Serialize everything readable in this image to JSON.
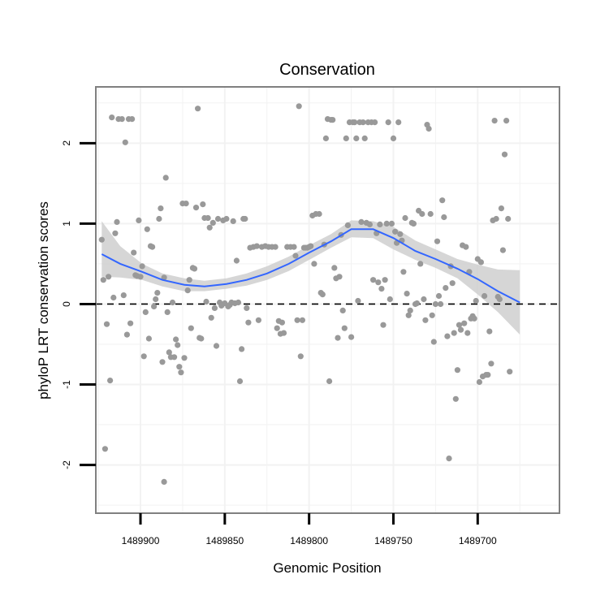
{
  "chart_data": {
    "type": "scatter",
    "title": "Conservation",
    "xlabel": "Genomic Position",
    "ylabel": "phyloP LRT conservation scores",
    "x_reversed": true,
    "xlim": [
      1489926.5,
      1489651.5
    ],
    "ylim": [
      -2.6,
      2.7
    ],
    "x_ticks": [
      1489900,
      1489850,
      1489800,
      1489750,
      1489700
    ],
    "x_tick_labels": [
      "1489900",
      "1489850",
      "1489800",
      "1489750",
      "1489700"
    ],
    "y_ticks": [
      -2,
      -1,
      0,
      1,
      2
    ],
    "y_tick_labels": [
      "-2",
      "-1",
      "0",
      "1",
      "2"
    ],
    "reference_line": {
      "y": 0,
      "style": "dashed"
    },
    "grid": true,
    "colors": {
      "points": "#999999",
      "smooth_line": "#3366ff",
      "ribbon": "#cccccc",
      "panel_border": "#808080",
      "grid": "#f2f2f2"
    },
    "smooth": {
      "x": [
        1489923,
        1489912,
        1489899,
        1489887,
        1489874,
        1489862,
        1489849,
        1489837,
        1489825,
        1489812,
        1489800,
        1489787,
        1489775,
        1489762,
        1489750,
        1489737,
        1489725,
        1489712,
        1489700,
        1489688,
        1489675
      ],
      "y": [
        0.62,
        0.5,
        0.4,
        0.3,
        0.24,
        0.22,
        0.25,
        0.3,
        0.38,
        0.5,
        0.64,
        0.78,
        0.93,
        0.93,
        0.82,
        0.66,
        0.56,
        0.44,
        0.31,
        0.16,
        0.02
      ],
      "lower": [
        0.34,
        0.33,
        0.3,
        0.22,
        0.16,
        0.16,
        0.19,
        0.23,
        0.3,
        0.41,
        0.55,
        0.7,
        0.83,
        0.82,
        0.68,
        0.55,
        0.45,
        0.32,
        0.12,
        -0.1,
        -0.38
      ],
      "upper": [
        1.03,
        0.72,
        0.5,
        0.38,
        0.32,
        0.29,
        0.32,
        0.38,
        0.47,
        0.59,
        0.73,
        0.87,
        1.04,
        1.03,
        0.96,
        0.79,
        0.68,
        0.56,
        0.49,
        0.43,
        0.42
      ]
    },
    "points": [
      [
        1489923,
        0.8
      ],
      [
        1489922,
        0.3
      ],
      [
        1489921,
        -1.8
      ],
      [
        1489920,
        -0.25
      ],
      [
        1489919,
        0.34
      ],
      [
        1489918,
        -0.95
      ],
      [
        1489917,
        2.32
      ],
      [
        1489916,
        0.08
      ],
      [
        1489915,
        0.88
      ],
      [
        1489914,
        1.02
      ],
      [
        1489913,
        2.3
      ],
      [
        1489911,
        2.3
      ],
      [
        1489910,
        0.11
      ],
      [
        1489909,
        2.01
      ],
      [
        1489908,
        -0.38
      ],
      [
        1489907,
        2.3
      ],
      [
        1489906,
        -0.24
      ],
      [
        1489905,
        2.3
      ],
      [
        1489904,
        0.64
      ],
      [
        1489903,
        0.36
      ],
      [
        1489902,
        0.35
      ],
      [
        1489901,
        1.04
      ],
      [
        1489900,
        0.34
      ],
      [
        1489899,
        0.47
      ],
      [
        1489898,
        -0.65
      ],
      [
        1489897,
        -0.1
      ],
      [
        1489896,
        0.93
      ],
      [
        1489895,
        -0.43
      ],
      [
        1489894,
        0.72
      ],
      [
        1489893,
        0.71
      ],
      [
        1489892,
        -0.03
      ],
      [
        1489891,
        0.06
      ],
      [
        1489890,
        0.14
      ],
      [
        1489889,
        1.06
      ],
      [
        1489888,
        1.19
      ],
      [
        1489887,
        -0.72
      ],
      [
        1489886,
        0.33
      ],
      [
        1489886,
        -2.21
      ],
      [
        1489885,
        1.57
      ],
      [
        1489884,
        -0.1
      ],
      [
        1489883,
        -0.6
      ],
      [
        1489882,
        -0.66
      ],
      [
        1489881,
        0.02
      ],
      [
        1489880,
        -0.66
      ],
      [
        1489879,
        -0.44
      ],
      [
        1489878,
        -0.51
      ],
      [
        1489877,
        -0.78
      ],
      [
        1489876,
        -0.85
      ],
      [
        1489875,
        1.25
      ],
      [
        1489874,
        -0.67
      ],
      [
        1489873,
        1.25
      ],
      [
        1489872,
        0.17
      ],
      [
        1489871,
        0.3
      ],
      [
        1489870,
        -0.3
      ],
      [
        1489869,
        0.45
      ],
      [
        1489868,
        0.44
      ],
      [
        1489867,
        1.2
      ],
      [
        1489866,
        2.43
      ],
      [
        1489865,
        -0.42
      ],
      [
        1489864,
        -0.43
      ],
      [
        1489863,
        1.24
      ],
      [
        1489862,
        1.07
      ],
      [
        1489861,
        0.03
      ],
      [
        1489860,
        1.07
      ],
      [
        1489859,
        0.95
      ],
      [
        1489858,
        -0.17
      ],
      [
        1489857,
        1.01
      ],
      [
        1489856,
        -0.05
      ],
      [
        1489855,
        -0.52
      ],
      [
        1489854,
        1.06
      ],
      [
        1489853,
        0.02
      ],
      [
        1489852,
        -0.02
      ],
      [
        1489851,
        1.04
      ],
      [
        1489850,
        0.01
      ],
      [
        1489849,
        1.06
      ],
      [
        1489848,
        -0.03
      ],
      [
        1489847,
        -0.01
      ],
      [
        1489846,
        0.02
      ],
      [
        1489845,
        1.03
      ],
      [
        1489844,
        0.01
      ],
      [
        1489843,
        0.54
      ],
      [
        1489842,
        0.02
      ],
      [
        1489841,
        -0.96
      ],
      [
        1489840,
        -0.56
      ],
      [
        1489839,
        1.06
      ],
      [
        1489838,
        1.06
      ],
      [
        1489837,
        -0.05
      ],
      [
        1489836,
        -0.23
      ],
      [
        1489835,
        0.7
      ],
      [
        1489833,
        0.71
      ],
      [
        1489831,
        0.72
      ],
      [
        1489830,
        -0.2
      ],
      [
        1489828,
        0.71
      ],
      [
        1489826,
        0.72
      ],
      [
        1489824,
        0.71
      ],
      [
        1489822,
        0.71
      ],
      [
        1489820,
        0.71
      ],
      [
        1489819,
        -0.3
      ],
      [
        1489818,
        -0.21
      ],
      [
        1489817,
        -0.37
      ],
      [
        1489816,
        -0.23
      ],
      [
        1489815,
        -0.36
      ],
      [
        1489813,
        0.71
      ],
      [
        1489811,
        0.71
      ],
      [
        1489809,
        0.71
      ],
      [
        1489808,
        0.6
      ],
      [
        1489807,
        -0.2
      ],
      [
        1489806,
        2.46
      ],
      [
        1489805,
        -0.65
      ],
      [
        1489804,
        -0.2
      ],
      [
        1489803,
        0.7
      ],
      [
        1489802,
        0.7
      ],
      [
        1489801,
        0.7
      ],
      [
        1489800,
        0.71
      ],
      [
        1489799,
        0.72
      ],
      [
        1489798,
        1.1
      ],
      [
        1489797,
        0.5
      ],
      [
        1489796,
        1.12
      ],
      [
        1489794,
        1.12
      ],
      [
        1489793,
        0.14
      ],
      [
        1489792,
        0.12
      ],
      [
        1489791,
        0.74
      ],
      [
        1489790,
        2.06
      ],
      [
        1489789,
        2.3
      ],
      [
        1489788,
        -0.96
      ],
      [
        1489787,
        2.29
      ],
      [
        1489786,
        2.29
      ],
      [
        1489785,
        0.45
      ],
      [
        1489784,
        0.32
      ],
      [
        1489783,
        -0.42
      ],
      [
        1489782,
        0.34
      ],
      [
        1489781,
        0.86
      ],
      [
        1489780,
        -0.08
      ],
      [
        1489779,
        -0.3
      ],
      [
        1489778,
        2.06
      ],
      [
        1489777,
        0.98
      ],
      [
        1489776,
        2.26
      ],
      [
        1489775,
        -0.41
      ],
      [
        1489774,
        2.26
      ],
      [
        1489773,
        2.26
      ],
      [
        1489772,
        2.06
      ],
      [
        1489771,
        0.04
      ],
      [
        1489770,
        2.26
      ],
      [
        1489769,
        1.02
      ],
      [
        1489768,
        2.26
      ],
      [
        1489767,
        2.06
      ],
      [
        1489766,
        1.01
      ],
      [
        1489765,
        2.26
      ],
      [
        1489764,
        0.99
      ],
      [
        1489763,
        2.26
      ],
      [
        1489762,
        0.3
      ],
      [
        1489761,
        2.26
      ],
      [
        1489760,
        0.88
      ],
      [
        1489759,
        0.27
      ],
      [
        1489758,
        0.99
      ],
      [
        1489757,
        0.19
      ],
      [
        1489756,
        -0.26
      ],
      [
        1489755,
        0.3
      ],
      [
        1489754,
        1.0
      ],
      [
        1489753,
        2.26
      ],
      [
        1489752,
        0.06
      ],
      [
        1489751,
        1.0
      ],
      [
        1489750,
        2.06
      ],
      [
        1489749,
        0.9
      ],
      [
        1489748,
        0.76
      ],
      [
        1489747,
        2.26
      ],
      [
        1489746,
        0.87
      ],
      [
        1489745,
        0.79
      ],
      [
        1489744,
        0.4
      ],
      [
        1489743,
        1.07
      ],
      [
        1489742,
        0.13
      ],
      [
        1489741,
        -0.14
      ],
      [
        1489740,
        -0.08
      ],
      [
        1489739,
        1.01
      ],
      [
        1489738,
        1.0
      ],
      [
        1489737,
        0.0
      ],
      [
        1489736,
        0.01
      ],
      [
        1489735,
        1.16
      ],
      [
        1489734,
        0.5
      ],
      [
        1489733,
        1.12
      ],
      [
        1489732,
        0.06
      ],
      [
        1489731,
        -0.2
      ],
      [
        1489730,
        2.23
      ],
      [
        1489729,
        2.18
      ],
      [
        1489728,
        1.12
      ],
      [
        1489727,
        -0.14
      ],
      [
        1489726,
        -0.47
      ],
      [
        1489725,
        0.0
      ],
      [
        1489724,
        0.78
      ],
      [
        1489723,
        0.1
      ],
      [
        1489722,
        0.0
      ],
      [
        1489721,
        1.29
      ],
      [
        1489720,
        1.08
      ],
      [
        1489719,
        0.2
      ],
      [
        1489718,
        -0.4
      ],
      [
        1489717,
        -1.92
      ],
      [
        1489716,
        0.47
      ],
      [
        1489715,
        0.26
      ],
      [
        1489714,
        -0.36
      ],
      [
        1489713,
        -1.18
      ],
      [
        1489712,
        -0.82
      ],
      [
        1489711,
        -0.26
      ],
      [
        1489710,
        -0.32
      ],
      [
        1489709,
        0.73
      ],
      [
        1489708,
        -0.24
      ],
      [
        1489707,
        0.71
      ],
      [
        1489706,
        -0.36
      ],
      [
        1489705,
        0.4
      ],
      [
        1489704,
        -0.18
      ],
      [
        1489703,
        -0.15
      ],
      [
        1489702,
        -0.18
      ],
      [
        1489701,
        0.04
      ],
      [
        1489700,
        0.56
      ],
      [
        1489699,
        -0.97
      ],
      [
        1489698,
        0.52
      ],
      [
        1489697,
        -0.9
      ],
      [
        1489696,
        0.1
      ],
      [
        1489695,
        -0.88
      ],
      [
        1489694,
        -0.88
      ],
      [
        1489693,
        -0.34
      ],
      [
        1489692,
        -0.74
      ],
      [
        1489691,
        1.04
      ],
      [
        1489690,
        2.28
      ],
      [
        1489689,
        1.06
      ],
      [
        1489688,
        0.09
      ],
      [
        1489687,
        0.06
      ],
      [
        1489686,
        1.19
      ],
      [
        1489685,
        0.67
      ],
      [
        1489684,
        1.86
      ],
      [
        1489683,
        2.28
      ],
      [
        1489682,
        1.06
      ],
      [
        1489681,
        -0.84
      ]
    ]
  }
}
